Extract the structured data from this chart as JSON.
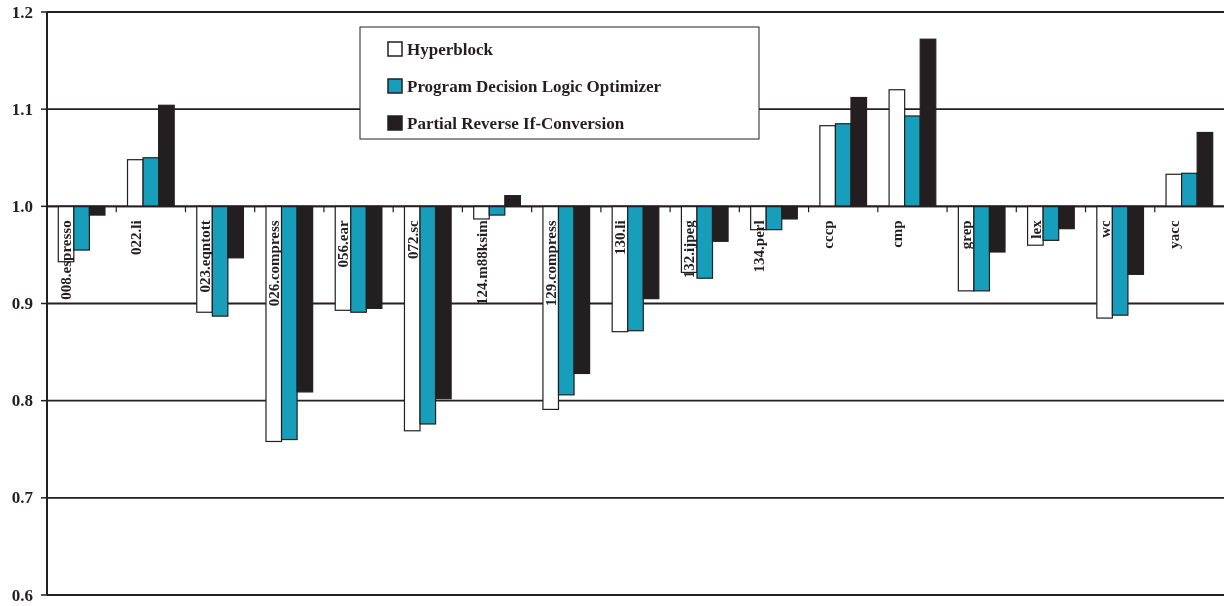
{
  "chart_data": {
    "type": "bar",
    "categories": [
      "008.espresso",
      "022.li",
      "023.eqntott",
      "026.compress",
      "056.ear",
      "072.sc",
      "124.m88ksim",
      "129.compress",
      "130.li",
      "132.ijpeg",
      "134.perl",
      "cccp",
      "cmp",
      "grep",
      "lex",
      "wc",
      "yacc"
    ],
    "series": [
      {
        "name": "Hyperblock",
        "color": "#ffffff",
        "base": [
          1,
          1,
          1,
          1,
          1,
          1,
          1,
          1,
          1,
          1,
          1,
          1,
          1,
          1,
          1,
          1,
          1
        ],
        "values": [
          -0.057,
          0.048,
          -0.109,
          -0.242,
          -0.107,
          -0.231,
          -0.013,
          -0.209,
          -0.129,
          -0.068,
          -0.024,
          0.083,
          0.12,
          -0.087,
          -0.04,
          -0.115,
          0.033
        ]
      },
      {
        "name": "Program Decision Logic Optimizer",
        "color": "#169ebb",
        "base": [
          1,
          1,
          1,
          1,
          1,
          1,
          1,
          1,
          1,
          1,
          1,
          1,
          1,
          1,
          1,
          1,
          1
        ],
        "values": [
          -0.045,
          0.05,
          -0.113,
          -0.24,
          -0.109,
          -0.224,
          -0.009,
          -0.194,
          -0.128,
          -0.074,
          -0.024,
          0.085,
          0.093,
          -0.087,
          -0.035,
          -0.112,
          0.034
        ]
      },
      {
        "name": "Partial Reverse If-Conversion",
        "color": "#231f20",
        "base": [
          1,
          1,
          1,
          1,
          1,
          1,
          1,
          1,
          1,
          1,
          1,
          1,
          1,
          1,
          1,
          1,
          1
        ],
        "values": [
          -0.009,
          0.104,
          -0.053,
          -0.191,
          -0.105,
          -0.198,
          0.011,
          -0.172,
          -0.095,
          -0.036,
          -0.013,
          0.112,
          0.172,
          -0.047,
          -0.023,
          -0.07,
          0.076
        ]
      }
    ],
    "ylim": [
      0.6,
      1.2
    ],
    "yticks": [
      0.6,
      0.7,
      0.8,
      0.9,
      {
        "value": 1,
        "label": "1.0"
      },
      1.1,
      1.2
    ],
    "grid": "y",
    "legend": "top"
  }
}
